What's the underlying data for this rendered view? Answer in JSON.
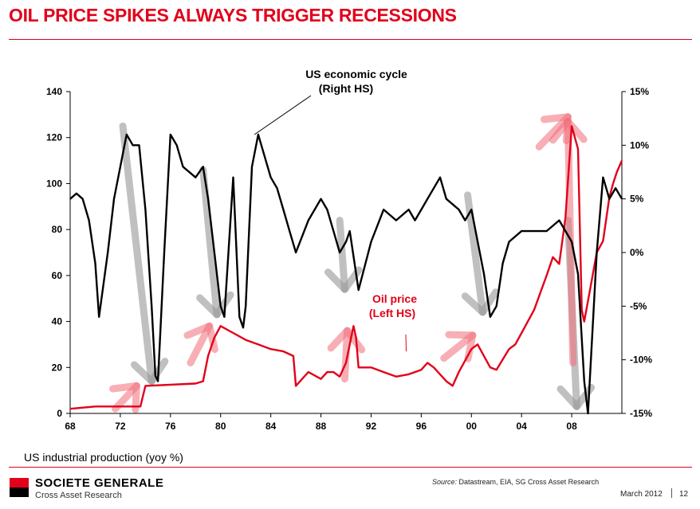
{
  "header": {
    "title": "OIL PRICE SPIKES ALWAYS TRIGGER RECESSIONS"
  },
  "chart_data": {
    "type": "line",
    "title": "OIL PRICE SPIKES ALWAYS TRIGGER RECESSIONS",
    "xlabel": "US industrial production (yoy %)",
    "x_tick_labels": [
      "68",
      "72",
      "76",
      "80",
      "84",
      "88",
      "92",
      "96",
      "00",
      "04",
      "08"
    ],
    "x_tick_years": [
      1968,
      1972,
      1976,
      1980,
      1984,
      1988,
      1992,
      1996,
      2000,
      2004,
      2008
    ],
    "xlim": [
      1968,
      2012
    ],
    "left_axis": {
      "label": "Oil price (Left HS)",
      "ylim": [
        0,
        140
      ],
      "ticks": [
        "0",
        "20",
        "40",
        "60",
        "80",
        "100",
        "120",
        "140"
      ]
    },
    "right_axis": {
      "label": "US economic cycle (Right HS)",
      "ylim": [
        -15,
        15
      ],
      "ticks": [
        "15%",
        "10%",
        "5%",
        "0%",
        "-5%",
        "-10%",
        "-15%"
      ]
    },
    "series": [
      {
        "name": "Oil price",
        "axis": "left",
        "color": "#e2001a",
        "x": [
          1968,
          1970,
          1973.6,
          1974,
          1978,
          1978.6,
          1979,
          1979.5,
          1980,
          1981,
          1982,
          1983,
          1984,
          1985,
          1985.8,
          1986,
          1986.5,
          1987,
          1988,
          1988.5,
          1989,
          1989.5,
          1990,
          1990.6,
          1990.8,
          1991,
          1992,
          1993,
          1994,
          1995,
          1996,
          1996.5,
          1997,
          1998,
          1998.5,
          1999,
          2000,
          2000.5,
          2001,
          2001.5,
          2002,
          2003,
          2003.5,
          2004,
          2005,
          2006,
          2006.5,
          2007,
          2007.5,
          2008,
          2008.5,
          2008.8,
          2009,
          2009.5,
          2010,
          2010.5,
          2011,
          2011.3,
          2011.6,
          2012
        ],
        "values": [
          2,
          3,
          3,
          12,
          13,
          14,
          25,
          33,
          38,
          35,
          32,
          30,
          28,
          27,
          25,
          12,
          15,
          18,
          15,
          18,
          18,
          16,
          22,
          38,
          33,
          20,
          20,
          18,
          16,
          17,
          19,
          22,
          20,
          14,
          12,
          18,
          28,
          30,
          25,
          20,
          19,
          28,
          30,
          35,
          45,
          60,
          68,
          65,
          85,
          125,
          115,
          45,
          40,
          55,
          70,
          75,
          94,
          100,
          105,
          110
        ]
      },
      {
        "name": "US economic cycle",
        "axis": "right",
        "color": "#000000",
        "x": [
          1968,
          1968.5,
          1969,
          1969.5,
          1970,
          1970.3,
          1971,
          1971.5,
          1972,
          1972.5,
          1973,
          1973.5,
          1974,
          1974.5,
          1974.8,
          1975,
          1975.5,
          1976,
          1976.5,
          1977,
          1978,
          1978.6,
          1979,
          1979.5,
          1980,
          1980.3,
          1981,
          1981.5,
          1981.8,
          1982,
          1982.5,
          1983,
          1984,
          1984.5,
          1985,
          1985.5,
          1986,
          1987,
          1988,
          1988.5,
          1989,
          1989.5,
          1990,
          1990.3,
          1991,
          1992,
          1993,
          1994,
          1995,
          1995.5,
          1996,
          1996.5,
          1997,
          1997.5,
          1998,
          1999,
          1999.5,
          2000,
          2001,
          2001.5,
          2002,
          2002.5,
          2003,
          2004,
          2005,
          2006,
          2007,
          2008,
          2008.5,
          2009,
          2009.3,
          2010,
          2010.5,
          2011,
          2011.5,
          2012
        ],
        "values": [
          5,
          5.5,
          5,
          3,
          -1,
          -6,
          0,
          5,
          8,
          11,
          10,
          10,
          4,
          -5,
          -11.5,
          -12,
          0,
          11,
          10,
          8,
          7,
          8,
          5,
          0,
          -5,
          -6,
          7,
          -6,
          -7,
          -5,
          8,
          11,
          7,
          6,
          4,
          2,
          0,
          3,
          5,
          4,
          2,
          0,
          1,
          2,
          -3.5,
          1,
          4,
          3,
          4,
          3,
          4,
          5,
          6,
          7,
          5,
          4,
          3,
          4,
          -2,
          -6,
          -5,
          -1,
          1,
          2,
          2,
          2,
          3,
          1,
          -2,
          -12,
          -15,
          0,
          7,
          5,
          6,
          5
        ]
      }
    ],
    "annotations": [
      {
        "text_lines": [
          "US economic cycle",
          "(Right HS)"
        ],
        "color": "#000000",
        "points_to": {
          "x": 1982.7,
          "axis": "right",
          "y": 11
        }
      },
      {
        "text_lines": [
          "Oil price",
          "(Left HS)"
        ],
        "color": "#e2001a",
        "points_to": {
          "x": 1994.8,
          "axis": "left",
          "y": 27
        }
      }
    ],
    "highlight_arrows": {
      "oil_spikes_up": [
        {
          "x0": 1971.6,
          "y0": 2,
          "x1": 1973.3,
          "y1": 12
        },
        {
          "x0": 1977.6,
          "y0": 22,
          "x1": 1979.1,
          "y1": 38
        },
        {
          "x0": 1989.9,
          "y0": 15,
          "x1": 1990.1,
          "y1": 36
        },
        {
          "x0": 1997.8,
          "y0": 24,
          "x1": 2000.1,
          "y1": 34
        },
        {
          "x0": 2008.1,
          "y0": 22,
          "x1": 2007.7,
          "y1": 127
        },
        {
          "x0": 2005.4,
          "y0": 116,
          "x1": 2007.7,
          "y1": 129
        }
      ],
      "recessions_down": [
        {
          "x0": 1972.2,
          "y0": 125,
          "x1": 1974.5,
          "y1": 14
        },
        {
          "x0": 1978.6,
          "y0": 106,
          "x1": 1979.7,
          "y1": 43
        },
        {
          "x0": 1989.5,
          "y0": 84,
          "x1": 1989.9,
          "y1": 54
        },
        {
          "x0": 1999.7,
          "y0": 95,
          "x1": 2000.9,
          "y1": 44
        },
        {
          "x0": 2007.7,
          "y0": 84,
          "x1": 2008.4,
          "y1": 3
        }
      ]
    }
  },
  "footer": {
    "brand": "SOCIETE GENERALE",
    "brand_sub": "Cross Asset Research",
    "source_label": "Source:",
    "source_text": " Datastream, EIA, SG Cross Asset Research",
    "date": "March 2012",
    "page": "12"
  }
}
